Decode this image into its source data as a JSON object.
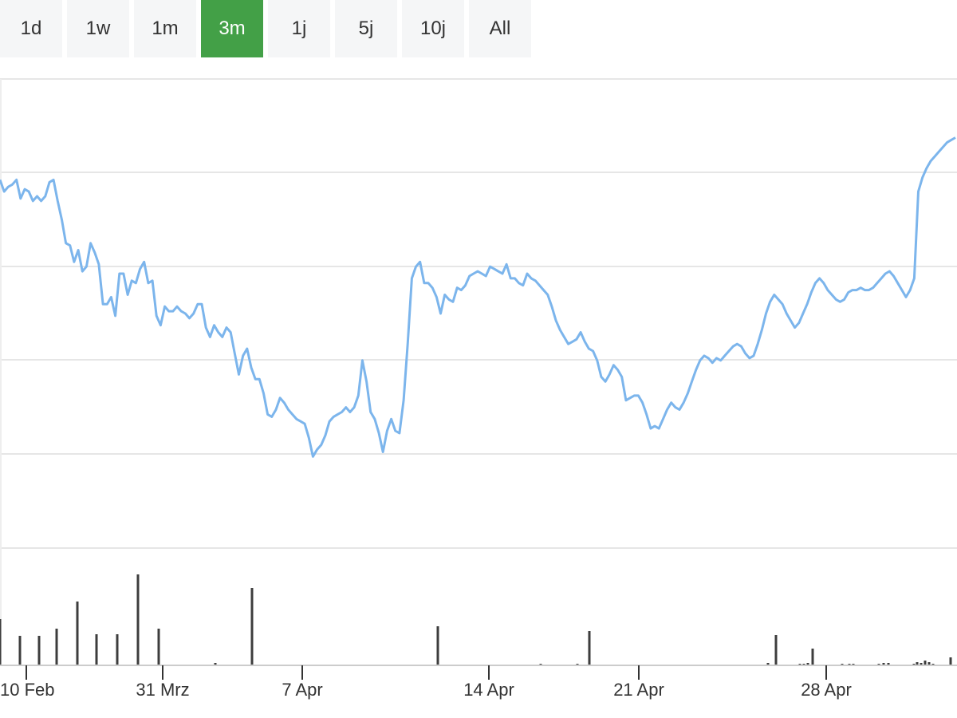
{
  "range_selector": {
    "buttons": [
      "1d",
      "1w",
      "1m",
      "3m",
      "1j",
      "5j",
      "10j",
      "All"
    ],
    "active": "3m",
    "active_color": "#43a047"
  },
  "chart_data": {
    "type": "line",
    "x_tick_labels": [
      "10 Feb",
      "31 Mrz",
      "7 Apr",
      "14 Apr",
      "21 Apr",
      "28 Apr"
    ],
    "grid": true,
    "series": [
      {
        "kind": "price-line",
        "color": "#7cb5ec",
        "values": [
          60.7,
          60.2,
          60.4,
          60.5,
          60.7,
          59.9,
          60.3,
          60.2,
          59.8,
          60.0,
          59.8,
          60.0,
          60.6,
          60.7,
          59.8,
          59.0,
          58.0,
          57.9,
          57.2,
          57.7,
          56.8,
          57.0,
          58.0,
          57.6,
          57.1,
          55.4,
          55.4,
          55.7,
          54.9,
          56.7,
          56.7,
          55.8,
          56.4,
          56.3,
          56.9,
          57.2,
          56.3,
          56.4,
          54.9,
          54.5,
          55.3,
          55.1,
          55.1,
          55.3,
          55.1,
          55.0,
          54.8,
          55.0,
          55.4,
          55.4,
          54.4,
          54.0,
          54.5,
          54.2,
          54.0,
          54.4,
          54.2,
          53.3,
          52.4,
          53.2,
          53.5,
          52.7,
          52.2,
          52.2,
          51.6,
          50.7,
          50.6,
          50.9,
          51.4,
          51.2,
          50.9,
          50.7,
          50.5,
          50.4,
          50.3,
          49.7,
          48.9,
          49.2,
          49.4,
          49.8,
          50.4,
          50.6,
          50.7,
          50.8,
          51.0,
          50.8,
          51.0,
          51.5,
          53.0,
          52.1,
          50.8,
          50.5,
          49.9,
          49.1,
          50.0,
          50.5,
          50.0,
          49.9,
          51.3,
          53.7,
          56.5,
          57.0,
          57.2,
          56.3,
          56.3,
          56.1,
          55.7,
          55.0,
          55.8,
          55.6,
          55.5,
          56.1,
          56.0,
          56.2,
          56.6,
          56.7,
          56.8,
          56.7,
          56.6,
          57.0,
          56.9,
          56.8,
          56.7,
          57.1,
          56.5,
          56.5,
          56.3,
          56.2,
          56.7,
          56.5,
          56.4,
          56.2,
          56.0,
          55.8,
          55.3,
          54.7,
          54.3,
          54.0,
          53.7,
          53.8,
          53.9,
          54.2,
          53.8,
          53.5,
          53.4,
          53.0,
          52.3,
          52.1,
          52.4,
          52.8,
          52.6,
          52.3,
          51.3,
          51.4,
          51.5,
          51.5,
          51.2,
          50.7,
          50.1,
          50.2,
          50.1,
          50.5,
          50.9,
          51.2,
          51.0,
          50.9,
          51.2,
          51.6,
          52.1,
          52.6,
          53.0,
          53.2,
          53.1,
          52.9,
          53.1,
          53.0,
          53.2,
          53.4,
          53.6,
          53.7,
          53.6,
          53.3,
          53.1,
          53.2,
          53.7,
          54.3,
          55.0,
          55.5,
          55.8,
          55.6,
          55.4,
          55.0,
          54.7,
          54.4,
          54.6,
          55.0,
          55.4,
          55.9,
          56.3,
          56.5,
          56.3,
          56.0,
          55.8,
          55.6,
          55.5,
          55.6,
          55.9,
          56.0,
          56.0,
          56.1,
          56.0,
          56.0,
          56.1,
          56.3,
          56.5,
          56.7,
          56.8,
          56.6,
          56.3,
          56.0,
          55.7,
          56.0,
          56.5,
          60.2,
          60.8,
          61.2,
          61.5,
          61.7,
          61.9,
          62.1,
          62.3,
          62.4,
          62.5
        ]
      },
      {
        "kind": "volume-bars",
        "color": "#3d3d3d",
        "points": [
          [
            0,
            58
          ],
          [
            25,
            37
          ],
          [
            49,
            37
          ],
          [
            71,
            46
          ],
          [
            97,
            80
          ],
          [
            121,
            39
          ],
          [
            147,
            39
          ],
          [
            173,
            114
          ],
          [
            199,
            46
          ],
          [
            270,
            3
          ],
          [
            316,
            97
          ],
          [
            549,
            49
          ],
          [
            678,
            2
          ],
          [
            724,
            2
          ],
          [
            739,
            43
          ],
          [
            963,
            3
          ],
          [
            973,
            38
          ],
          [
            1003,
            2
          ],
          [
            1008,
            2
          ],
          [
            1013,
            3
          ],
          [
            1019,
            21
          ],
          [
            1056,
            2
          ],
          [
            1065,
            2
          ],
          [
            1070,
            2
          ],
          [
            1102,
            2
          ],
          [
            1108,
            3
          ],
          [
            1114,
            3
          ],
          [
            1146,
            2
          ],
          [
            1150,
            4
          ],
          [
            1155,
            3
          ],
          [
            1160,
            6
          ],
          [
            1165,
            4
          ],
          [
            1170,
            2
          ],
          [
            1192,
            10
          ]
        ]
      }
    ],
    "y_axis_labels_visible": false
  }
}
